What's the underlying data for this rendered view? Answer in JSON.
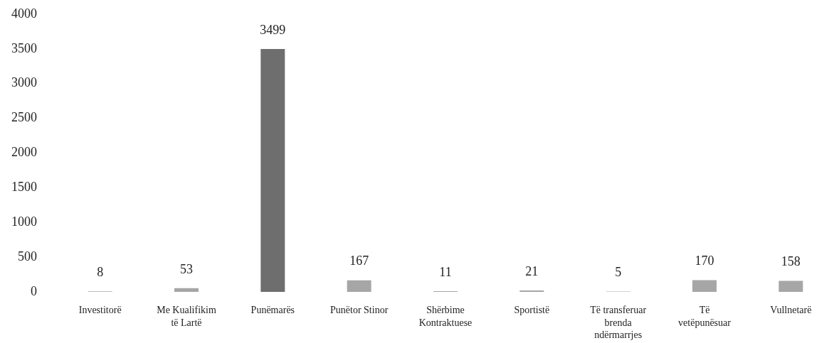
{
  "chart_data": {
    "type": "bar",
    "categories": [
      "Investitorë",
      "Me Kualifikim të Lartë",
      "Punëmarës",
      "Punëtor Stinor",
      "Shërbime Kontraktuese",
      "Sportistë",
      "Të transferuar brenda ndërmarrjes",
      "Të vetëpunësuar",
      "Vullnetarë"
    ],
    "values": [
      8,
      53,
      3499,
      167,
      11,
      21,
      5,
      170,
      158
    ],
    "colors": [
      "#a6a6a6",
      "#a6a6a6",
      "#6e6e6e",
      "#a6a6a6",
      "#a6a6a6",
      "#a6a6a6",
      "#a6a6a6",
      "#a6a6a6",
      "#a6a6a6"
    ],
    "ylim": [
      0,
      4000
    ],
    "yticks": [
      0,
      500,
      1000,
      1500,
      2000,
      2500,
      3000,
      3500,
      4000
    ],
    "data_labels": true
  }
}
